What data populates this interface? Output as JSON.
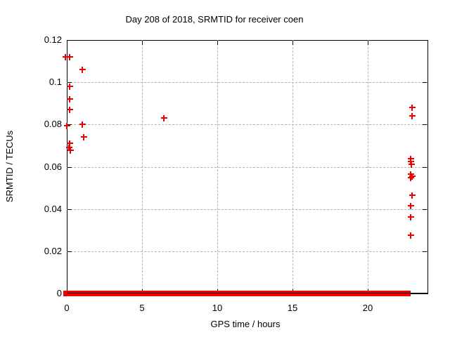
{
  "chart_data": {
    "type": "scatter",
    "title": "Day 208 of 2018, SRMTID for receiver coen",
    "xlabel": "GPS time / hours",
    "ylabel": "SRMTID / TECUs",
    "xlim": [
      0,
      24
    ],
    "ylim": [
      0,
      0.12
    ],
    "xticks": {
      "values": [
        0,
        5,
        10,
        15,
        20
      ],
      "labels": [
        "0",
        "5",
        "10",
        "15",
        "20"
      ]
    },
    "yticks": {
      "values": [
        0,
        0.02,
        0.04,
        0.06,
        0.08,
        0.1,
        0.12
      ],
      "labels": [
        "0",
        "0.02",
        "0.04",
        "0.06",
        "0.08",
        "0.1",
        "0.12"
      ]
    },
    "grid": true,
    "legend_position": "none",
    "marker": "plus",
    "colors": {
      "marker": "#ee0000",
      "grid": "#b3b3b3",
      "axis": "#000000",
      "background": "#ffffff"
    },
    "series": [
      {
        "name": "SRMTID",
        "points": [
          [
            -0.1,
            0.112
          ],
          [
            0.18,
            0.112
          ],
          [
            1.05,
            0.106
          ],
          [
            0.2,
            0.098
          ],
          [
            0.2,
            0.092
          ],
          [
            0.2,
            0.087
          ],
          [
            1.05,
            0.08
          ],
          [
            0.0,
            0.0795
          ],
          [
            1.1,
            0.074
          ],
          [
            0.2,
            0.071
          ],
          [
            0.15,
            0.0692
          ],
          [
            0.22,
            0.0678
          ],
          [
            6.45,
            0.083
          ],
          [
            22.97,
            0.088
          ],
          [
            22.95,
            0.084
          ],
          [
            22.9,
            0.0637
          ],
          [
            22.9,
            0.0625
          ],
          [
            22.92,
            0.0613
          ],
          [
            22.9,
            0.0566
          ],
          [
            22.95,
            0.0556
          ],
          [
            22.88,
            0.0549
          ],
          [
            22.97,
            0.0465
          ],
          [
            22.9,
            0.0415
          ],
          [
            22.87,
            0.0363
          ],
          [
            22.87,
            0.0275
          ]
        ]
      }
    ],
    "zero_band": {
      "description": "dense continuous run of plus markers at y≈0 along the x-axis",
      "x_start": -0.25,
      "x_end": 22.9,
      "y": 0
    }
  }
}
